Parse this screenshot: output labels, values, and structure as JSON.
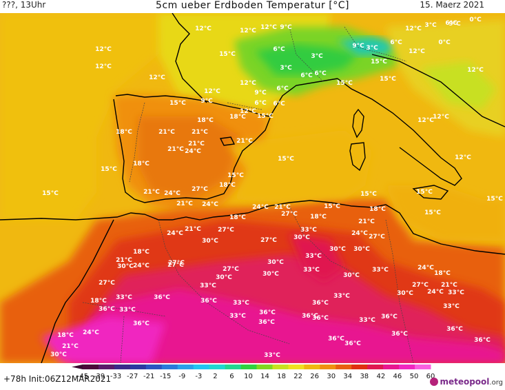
{
  "header": {
    "left": "???, 13Uhr",
    "title": "5cm ueber Erdboden Temperatur [°C]",
    "right": "15. Maerz 2021"
  },
  "footer": {
    "run": "+78h Init:06Z12MAR2021",
    "logo_main": "meteopool",
    "logo_tld": ".org"
  },
  "legend": {
    "ticks": [
      "-45",
      "-39",
      "-33",
      "-27",
      "-21",
      "-15",
      "-9",
      "-3",
      "2",
      "6",
      "10",
      "14",
      "18",
      "22",
      "26",
      "30",
      "34",
      "38",
      "42",
      "46",
      "50",
      "60"
    ],
    "colors": [
      "#4b0a3a",
      "#5a1a6a",
      "#3a2a8a",
      "#2a3aa0",
      "#2a55c0",
      "#2a7ad8",
      "#2aa0e8",
      "#22c4f0",
      "#20d8d0",
      "#22d890",
      "#30d040",
      "#80d820",
      "#c8e020",
      "#f0e020",
      "#f0b810",
      "#f09010",
      "#e86010",
      "#e03010",
      "#e01850",
      "#e81890",
      "#f028c0",
      "#f860e0"
    ]
  },
  "map": {
    "labels": [
      {
        "t": "12°C"
      },
      {
        "t": "12°C"
      },
      {
        "t": "9°C"
      },
      {
        "t": "12°C"
      },
      {
        "t": "12°C"
      },
      {
        "t": "9°C"
      },
      {
        "t": "0°C"
      },
      {
        "t": "3°C"
      },
      {
        "t": "6°C"
      },
      {
        "t": "12°C"
      },
      {
        "t": "15°C"
      },
      {
        "t": "6°C"
      },
      {
        "t": "3°C"
      },
      {
        "t": "9°C"
      },
      {
        "t": "3°C"
      },
      {
        "t": "6°C"
      },
      {
        "t": "0°C"
      },
      {
        "t": "12°C"
      },
      {
        "t": "3°C"
      },
      {
        "t": "6°C"
      },
      {
        "t": "6°C"
      },
      {
        "t": "15°C"
      },
      {
        "t": "12°C"
      },
      {
        "t": "12°C"
      },
      {
        "t": "12°C"
      },
      {
        "t": "12°C"
      },
      {
        "t": "9°C"
      },
      {
        "t": "6°C"
      },
      {
        "t": "12°C"
      },
      {
        "t": "15°C"
      },
      {
        "t": "15°C"
      },
      {
        "t": "6°C"
      },
      {
        "t": "15°C"
      },
      {
        "t": "9°C"
      },
      {
        "t": "6°C"
      },
      {
        "t": "12°C"
      },
      {
        "t": "15°C"
      },
      {
        "t": "12°C"
      },
      {
        "t": "18°C"
      },
      {
        "t": "18°C"
      },
      {
        "t": "21°C"
      },
      {
        "t": "21°C"
      },
      {
        "t": "12°C"
      },
      {
        "t": "21°C"
      },
      {
        "t": "21°C"
      },
      {
        "t": "18°C"
      },
      {
        "t": "24°C"
      },
      {
        "t": "21°C"
      },
      {
        "t": "15°C"
      },
      {
        "t": "18°C"
      },
      {
        "t": "15°C"
      },
      {
        "t": "15°C"
      },
      {
        "t": "12°C"
      },
      {
        "t": "18°C"
      },
      {
        "t": "15°C"
      },
      {
        "t": "15°C"
      },
      {
        "t": "21°C"
      },
      {
        "t": "24°C"
      },
      {
        "t": "27°C"
      },
      {
        "t": "21°C"
      },
      {
        "t": "24°C"
      },
      {
        "t": "24°C"
      },
      {
        "t": "21°C"
      },
      {
        "t": "15°C"
      },
      {
        "t": "18°C"
      },
      {
        "t": "15°C"
      },
      {
        "t": "15°C"
      },
      {
        "t": "15°C"
      },
      {
        "t": "18°C"
      },
      {
        "t": "27°C"
      },
      {
        "t": "18°C"
      },
      {
        "t": "21°C"
      },
      {
        "t": "24°C"
      },
      {
        "t": "21°C"
      },
      {
        "t": "27°C"
      },
      {
        "t": "33°C"
      },
      {
        "t": "30°C"
      },
      {
        "t": "24°C"
      },
      {
        "t": "27°C"
      },
      {
        "t": "30°C"
      },
      {
        "t": "27°C"
      },
      {
        "t": "21°C"
      },
      {
        "t": "18°C"
      },
      {
        "t": "27°C"
      },
      {
        "t": "30°C"
      },
      {
        "t": "24°C"
      },
      {
        "t": "27°C"
      },
      {
        "t": "30°C"
      },
      {
        "t": "33°C"
      },
      {
        "t": "27°C"
      },
      {
        "t": "30°C"
      },
      {
        "t": "33°C"
      },
      {
        "t": "24°C"
      },
      {
        "t": "18°C"
      },
      {
        "t": "27°C"
      },
      {
        "t": "30°C"
      },
      {
        "t": "36°C"
      },
      {
        "t": "30°C"
      },
      {
        "t": "33°C"
      },
      {
        "t": "30°C"
      },
      {
        "t": "27°C"
      },
      {
        "t": "21°C"
      },
      {
        "t": "24°C"
      },
      {
        "t": "30°C"
      },
      {
        "t": "33°C"
      },
      {
        "t": "30°C"
      },
      {
        "t": "36°C"
      },
      {
        "t": "33°C"
      },
      {
        "t": "18°C"
      },
      {
        "t": "33°C"
      },
      {
        "t": "36°C"
      },
      {
        "t": "33°C"
      },
      {
        "t": "36°C"
      },
      {
        "t": "33°C"
      },
      {
        "t": "36°C"
      },
      {
        "t": "33°C"
      },
      {
        "t": "33°C"
      },
      {
        "t": "36°C"
      },
      {
        "t": "33°C"
      },
      {
        "t": "36°C"
      },
      {
        "t": "36°C"
      },
      {
        "t": "33°C"
      },
      {
        "t": "36°C"
      },
      {
        "t": "36°C"
      },
      {
        "t": "18°C"
      },
      {
        "t": "24°C"
      },
      {
        "t": "36°C"
      },
      {
        "t": "36°C"
      },
      {
        "t": "36°C"
      },
      {
        "t": "36°C"
      },
      {
        "t": "36°C"
      },
      {
        "t": "21°C"
      },
      {
        "t": "30°C"
      },
      {
        "t": "33°C"
      }
    ]
  }
}
